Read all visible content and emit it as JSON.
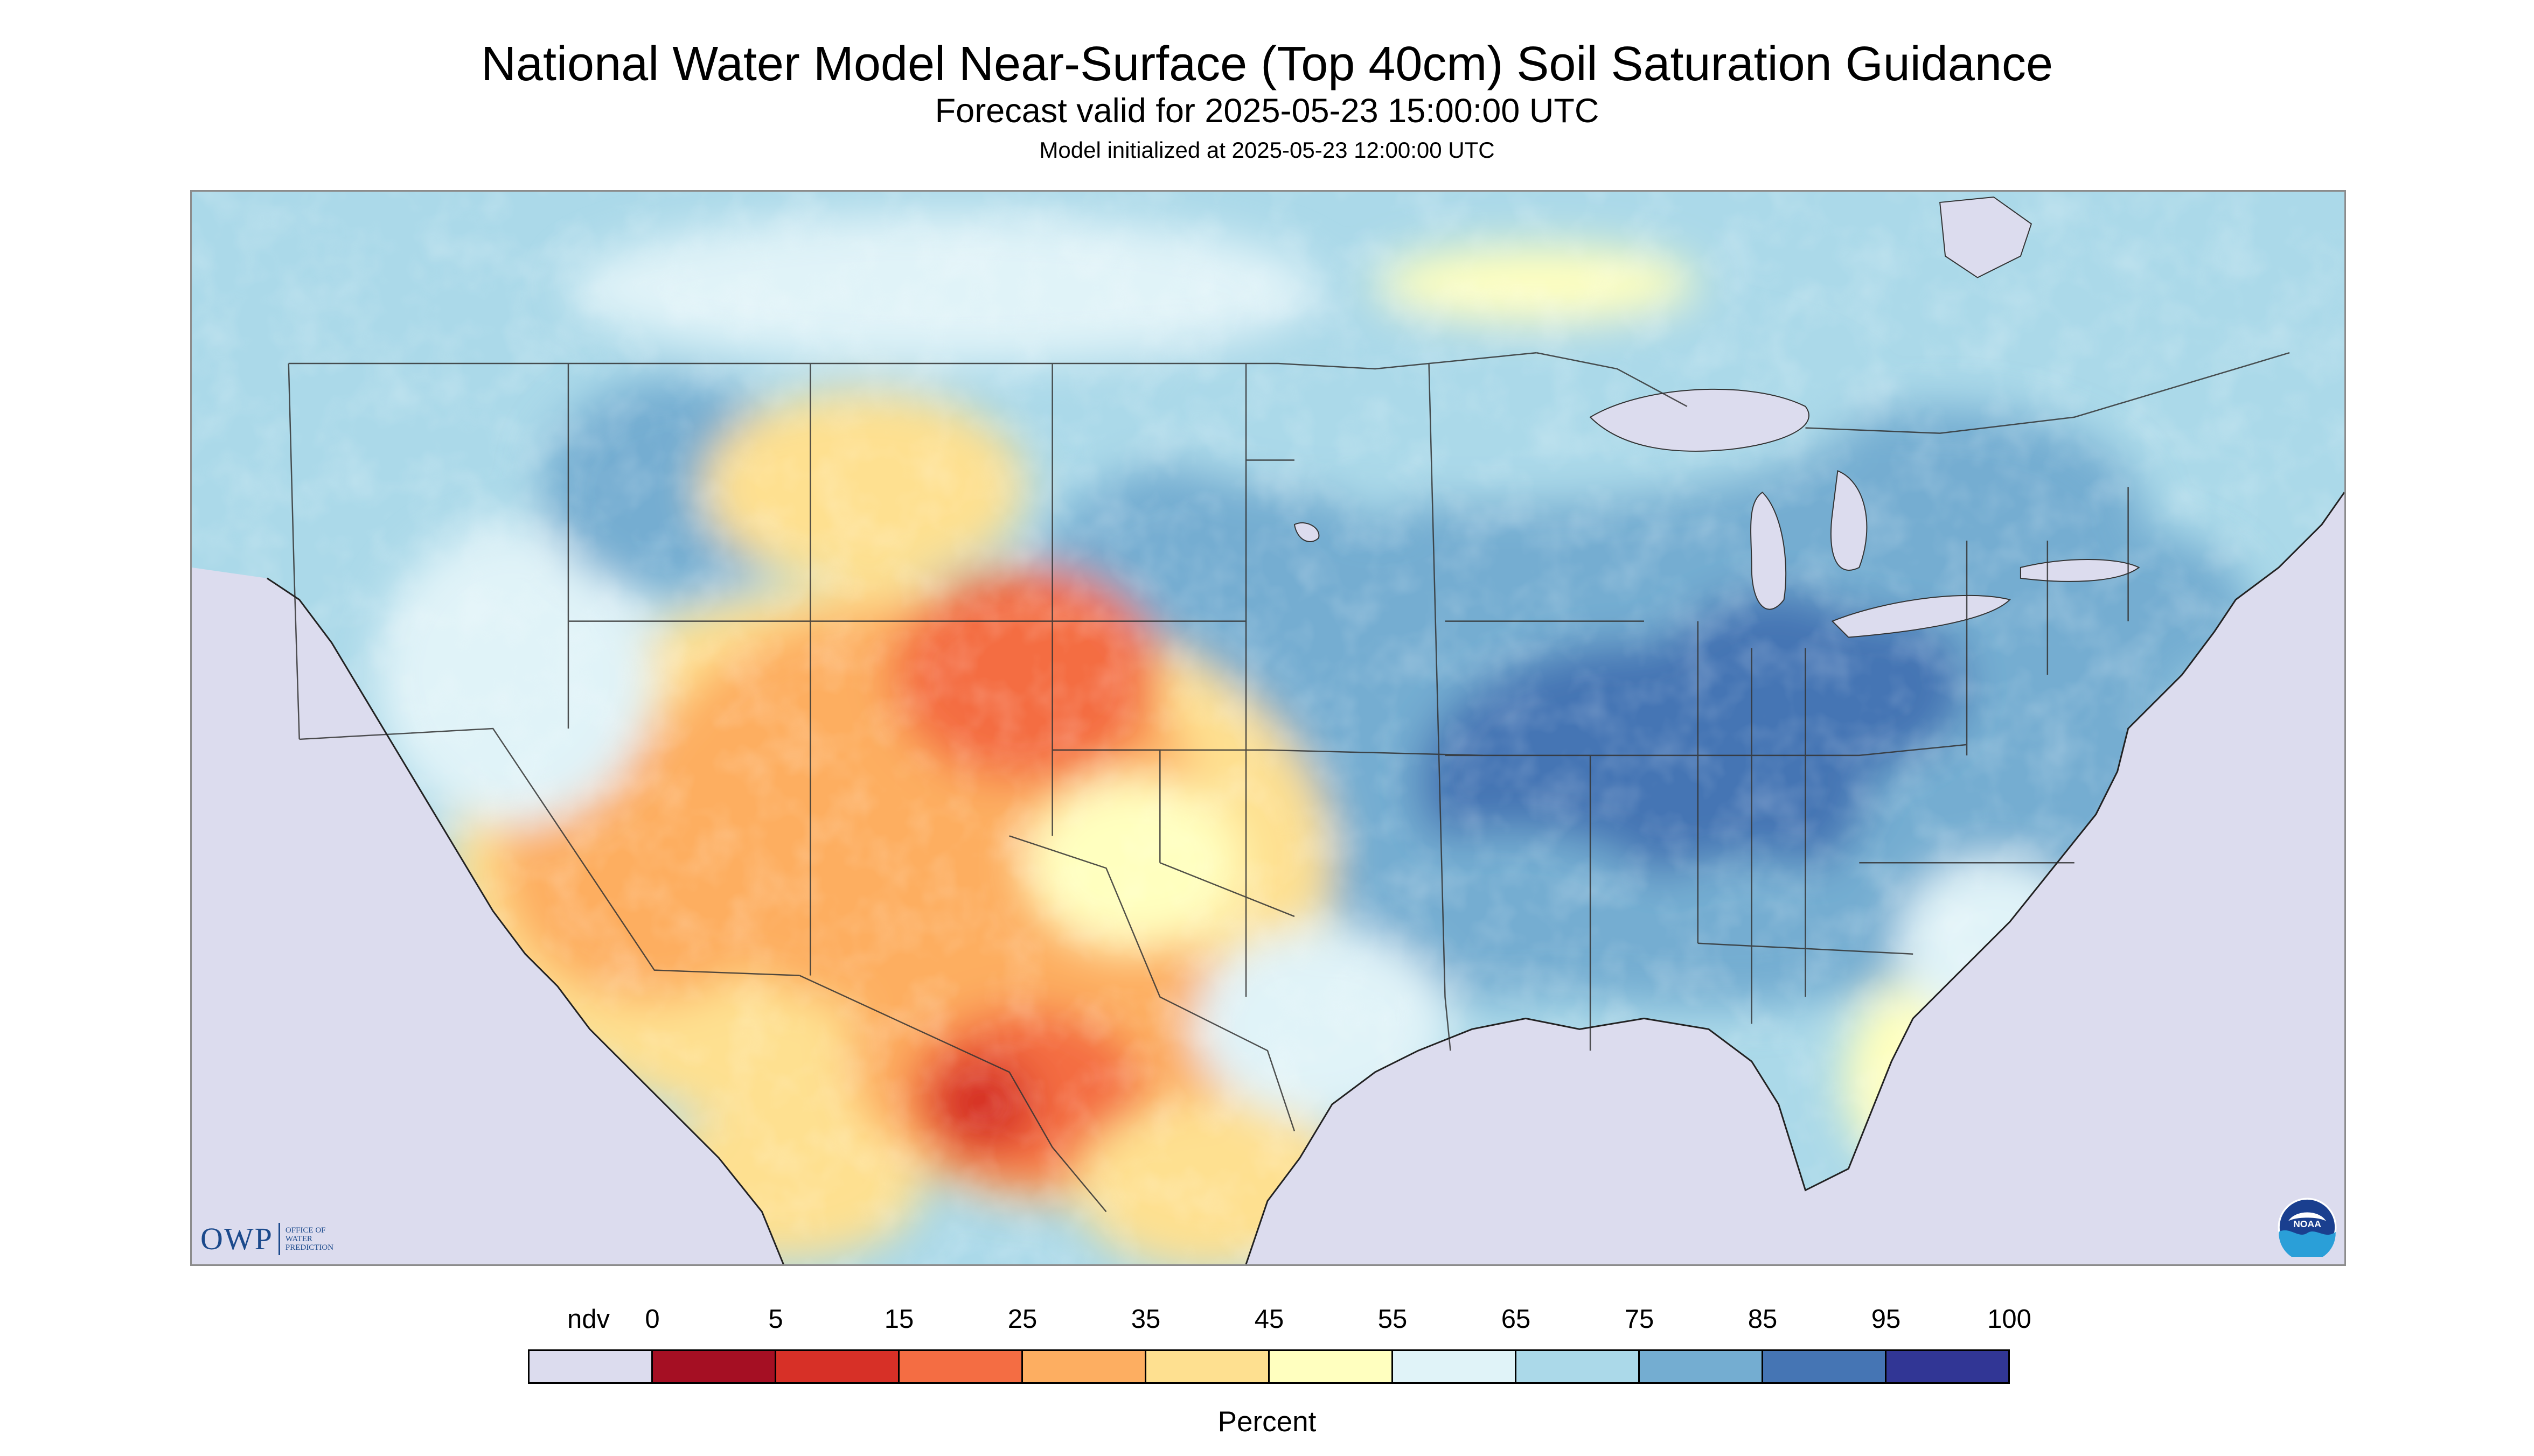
{
  "header": {
    "title": "National Water Model Near-Surface (Top 40cm) Soil Saturation Guidance",
    "subtitle": "Forecast valid for 2025-05-23 15:00:00 UTC",
    "init_text": "Model initialized at 2025-05-23 12:00:00 UTC"
  },
  "map": {
    "logos": {
      "owp": {
        "abbrev": "OWP",
        "line1": "OFFICE OF",
        "line2": "WATER",
        "line3": "PREDICTION",
        "icon": "owp-logo",
        "color": "#1c4a8c"
      },
      "noaa": {
        "text": "NOAA",
        "icon": "noaa-logo"
      }
    },
    "colors": {
      "ndv_background": "#dcdcee",
      "border_lines": "#333333"
    }
  },
  "legend": {
    "unit": "Percent",
    "labels": [
      "ndv",
      "0",
      "5",
      "15",
      "25",
      "35",
      "45",
      "55",
      "65",
      "75",
      "85",
      "95",
      "100"
    ],
    "bins": [
      {
        "label": "ndv",
        "color": "#dcdcee"
      },
      {
        "label": "0-5",
        "color": "#a50f23"
      },
      {
        "label": "5-15",
        "color": "#d73027"
      },
      {
        "label": "15-25",
        "color": "#f46d43"
      },
      {
        "label": "25-35",
        "color": "#fdae61"
      },
      {
        "label": "35-45",
        "color": "#fee090"
      },
      {
        "label": "45-55",
        "color": "#ffffbf"
      },
      {
        "label": "55-65",
        "color": "#e0f3f8"
      },
      {
        "label": "65-75",
        "color": "#abd9e9"
      },
      {
        "label": "75-85",
        "color": "#74add1"
      },
      {
        "label": "85-95",
        "color": "#4575b4"
      },
      {
        "label": "95-100",
        "color": "#313695"
      }
    ]
  }
}
